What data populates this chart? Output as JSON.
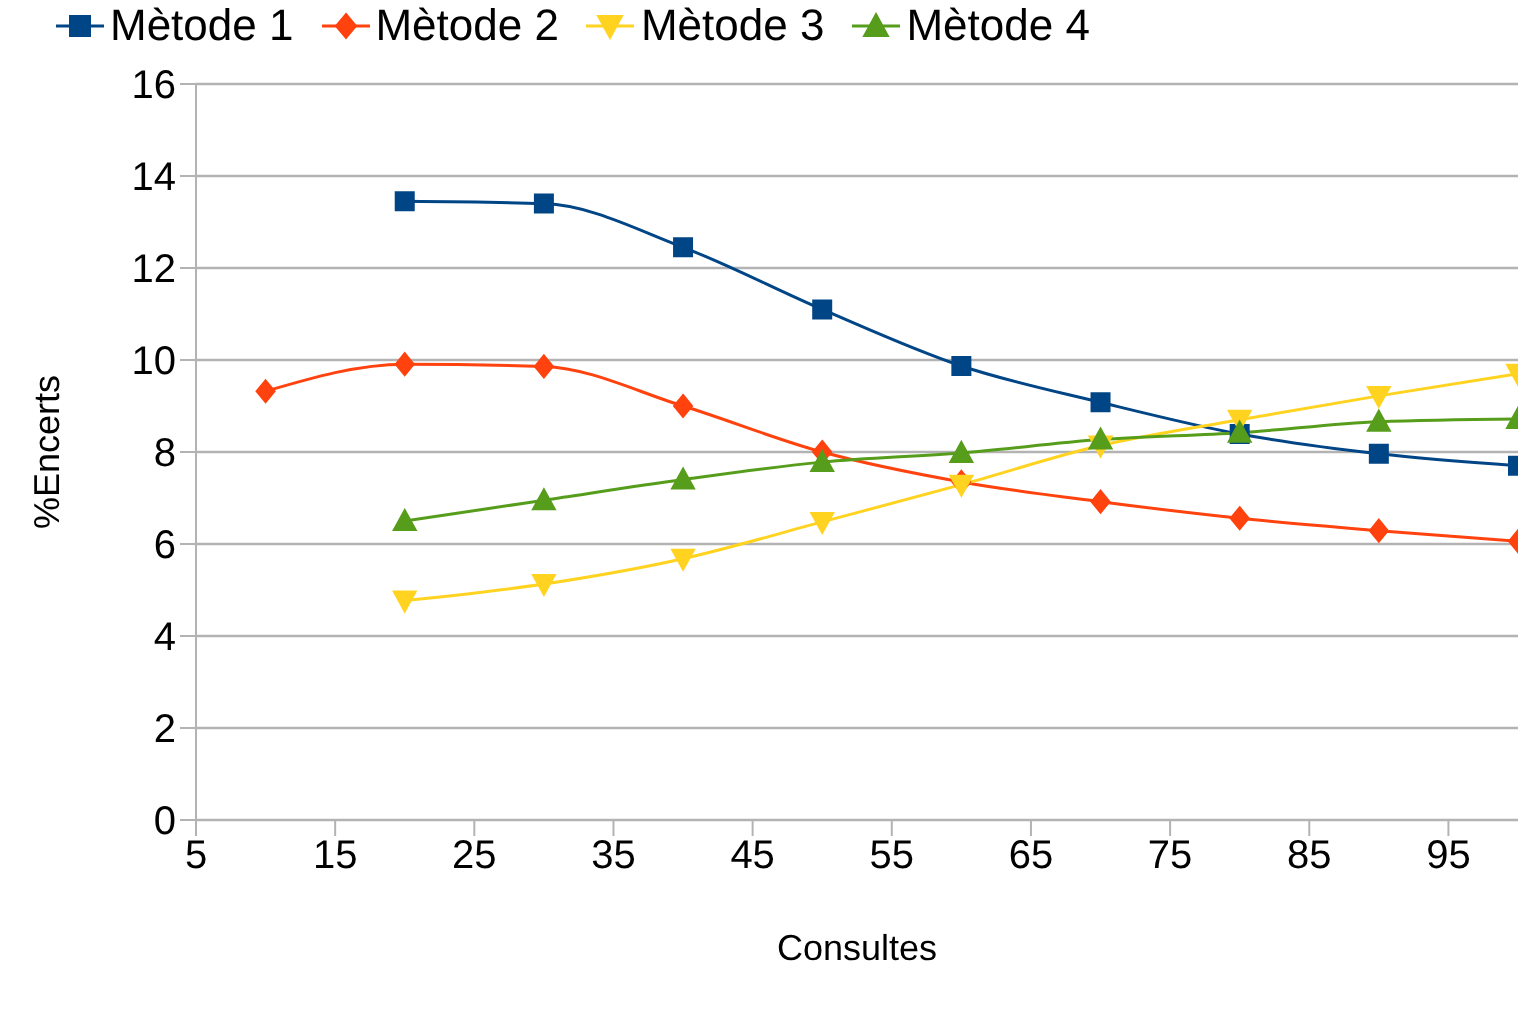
{
  "chart_data": {
    "type": "line",
    "xlabel": "Consultes",
    "ylabel": "%Encerts",
    "xlim": [
      5,
      100
    ],
    "xticks": [
      5,
      15,
      25,
      35,
      45,
      55,
      65,
      75,
      85,
      95
    ],
    "ylim": [
      0,
      16
    ],
    "yticks": [
      0,
      2,
      4,
      6,
      8,
      10,
      12,
      14,
      16
    ],
    "grid": "y",
    "legend": "top",
    "line_style": "solid",
    "series": [
      {
        "name": "Mètode 1",
        "color": "#004586",
        "marker": "square",
        "x": [
          20,
          30,
          40,
          50,
          60,
          70,
          80,
          90,
          100
        ],
        "values": [
          13.45,
          13.4,
          12.45,
          11.1,
          9.87,
          9.08,
          8.39,
          7.96,
          7.7
        ]
      },
      {
        "name": "Mètode 2",
        "color": "#ff420e",
        "marker": "diamond",
        "x": [
          10,
          20,
          30,
          40,
          50,
          60,
          70,
          80,
          90,
          100
        ],
        "values": [
          9.32,
          9.91,
          9.86,
          9.0,
          8.0,
          7.35,
          6.92,
          6.56,
          6.29,
          6.06
        ]
      },
      {
        "name": "Mètode 3",
        "color": "#ffd320",
        "marker": "triangle-down",
        "x": [
          20,
          30,
          40,
          50,
          60,
          70,
          80,
          90,
          100
        ],
        "values": [
          4.77,
          5.13,
          5.68,
          6.48,
          7.29,
          8.14,
          8.7,
          9.22,
          9.7
        ]
      },
      {
        "name": "Mètode 4",
        "color": "#579d1c",
        "marker": "triangle",
        "x": [
          20,
          30,
          40,
          50,
          60,
          70,
          80,
          90,
          100
        ],
        "values": [
          6.5,
          6.95,
          7.4,
          7.78,
          7.98,
          8.27,
          8.42,
          8.66,
          8.72
        ]
      }
    ]
  }
}
